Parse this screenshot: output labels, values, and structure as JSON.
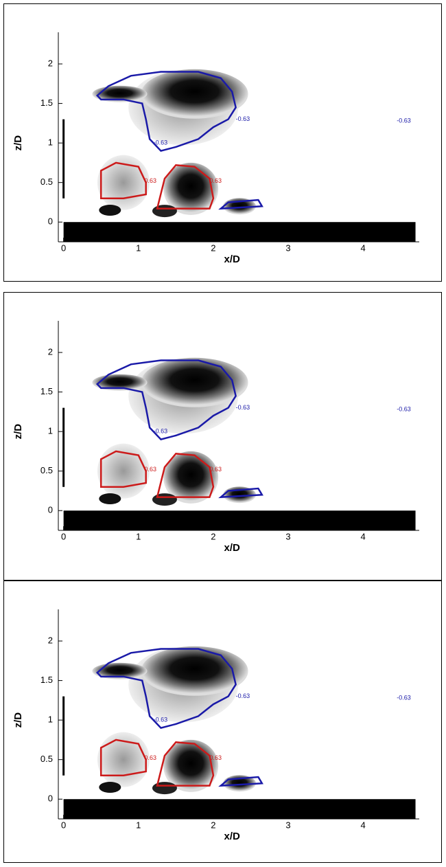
{
  "chart_data": [
    {
      "type": "contour",
      "xlabel": "x/D",
      "ylabel": "z/D",
      "xlim": [
        -0.07,
        4.75
      ],
      "ylim": [
        -0.25,
        2.4
      ],
      "xticks": [
        0,
        1,
        2,
        3,
        4
      ],
      "yticks": [
        0,
        0.5,
        1,
        1.5,
        2
      ],
      "contour_levels": [
        {
          "value": -0.63,
          "color": "#1a1aa8"
        },
        {
          "value": 0.63,
          "color": "#cc1a1a"
        }
      ]
    },
    {
      "type": "contour",
      "xlabel": "x/D",
      "ylabel": "z/D",
      "xlim": [
        -0.07,
        4.75
      ],
      "ylim": [
        -0.25,
        2.4
      ],
      "xticks": [
        0,
        1,
        2,
        3,
        4
      ],
      "yticks": [
        0,
        0.5,
        1,
        1.5,
        2
      ],
      "contour_levels": [
        {
          "value": -0.63,
          "color": "#1a1aa8"
        },
        {
          "value": 0.63,
          "color": "#cc1a1a"
        }
      ]
    },
    {
      "type": "contour",
      "xlabel": "x/D",
      "ylabel": "z/D",
      "xlim": [
        -0.07,
        4.75
      ],
      "ylim": [
        -0.25,
        2.4
      ],
      "xticks": [
        0,
        1,
        2,
        3,
        4
      ],
      "yticks": [
        0,
        0.5,
        1,
        1.5,
        2
      ],
      "contour_levels": [
        {
          "value": -0.63,
          "color": "#1a1aa8"
        },
        {
          "value": 0.63,
          "color": "#cc1a1a"
        }
      ]
    }
  ]
}
